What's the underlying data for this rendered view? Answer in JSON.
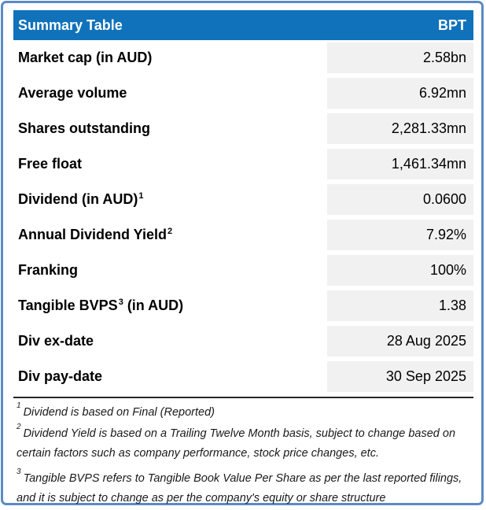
{
  "header": {
    "title": "Summary Table",
    "ticker": "BPT"
  },
  "rows": [
    {
      "label": "Market cap (in AUD)",
      "value": "2.58bn"
    },
    {
      "label": "Average volume",
      "value": "6.92mn"
    },
    {
      "label": "Shares outstanding",
      "value": "2,281.33mn"
    },
    {
      "label": "Free float",
      "value": "1,461.34mn"
    },
    {
      "label": "Dividend (in AUD)",
      "sup": "1",
      "value": "0.0600"
    },
    {
      "label": "Annual Dividend Yield",
      "sup": "2",
      "value": "7.92%"
    },
    {
      "label": "Franking",
      "value": "100%"
    },
    {
      "label": "Tangible BVPS",
      "sup": "3",
      "suffix": " (in AUD)",
      "value": "1.38"
    },
    {
      "label": "Div ex-date",
      "value": "28 Aug 2025"
    },
    {
      "label": "Div pay-date",
      "value": "30 Sep 2025"
    }
  ],
  "footnotes": [
    {
      "sup": "1",
      "text": "Dividend is based on Final (Reported)"
    },
    {
      "sup": "2",
      "text": "Dividend Yield is based on a Trailing Twelve Month basis, subject to change based on certain factors such as company performance, stock price changes, etc."
    },
    {
      "sup": "3",
      "text": "Tangible BVPS refers to Tangible Book Value Per Share as per the last reported filings, and it is subject to change as per the company's equity or share structure"
    }
  ],
  "colors": {
    "header_bg": "#1072BA",
    "header_text": "#FFFFFF",
    "outer_border": "#5B8AC6",
    "value_cell_bg": "#F1F1F1",
    "divider": "#262626"
  }
}
